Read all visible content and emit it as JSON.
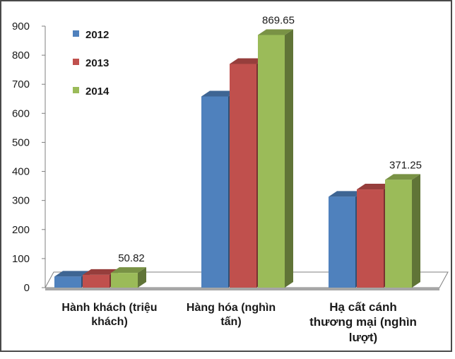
{
  "chart_data": {
    "type": "bar",
    "title": "",
    "xlabel": "",
    "ylabel": "",
    "ylim": [
      0,
      900
    ],
    "yticks": [
      0,
      100,
      200,
      300,
      400,
      500,
      600,
      700,
      800,
      900
    ],
    "categories": [
      "Hành khách (triệu khách)",
      "Hàng hóa (nghìn tấn)",
      "Hạ cất cánh thương mại (nghìn lượt)"
    ],
    "series": [
      {
        "name": "2012",
        "color": "#4f81bd",
        "values": [
          38,
          658,
          313
        ]
      },
      {
        "name": "2013",
        "color": "#c0504d",
        "values": [
          44,
          770,
          338
        ]
      },
      {
        "name": "2014",
        "color": "#9bbb59",
        "values": [
          50.82,
          869.65,
          371.25
        ]
      }
    ],
    "data_labels": [
      {
        "category": 0,
        "series": 2,
        "text": "50.82"
      },
      {
        "category": 1,
        "series": 2,
        "text": "869.65"
      },
      {
        "category": 2,
        "series": 2,
        "text": "371.25"
      }
    ],
    "legend_position": "top-left",
    "grid": false,
    "style": "3d-column"
  }
}
